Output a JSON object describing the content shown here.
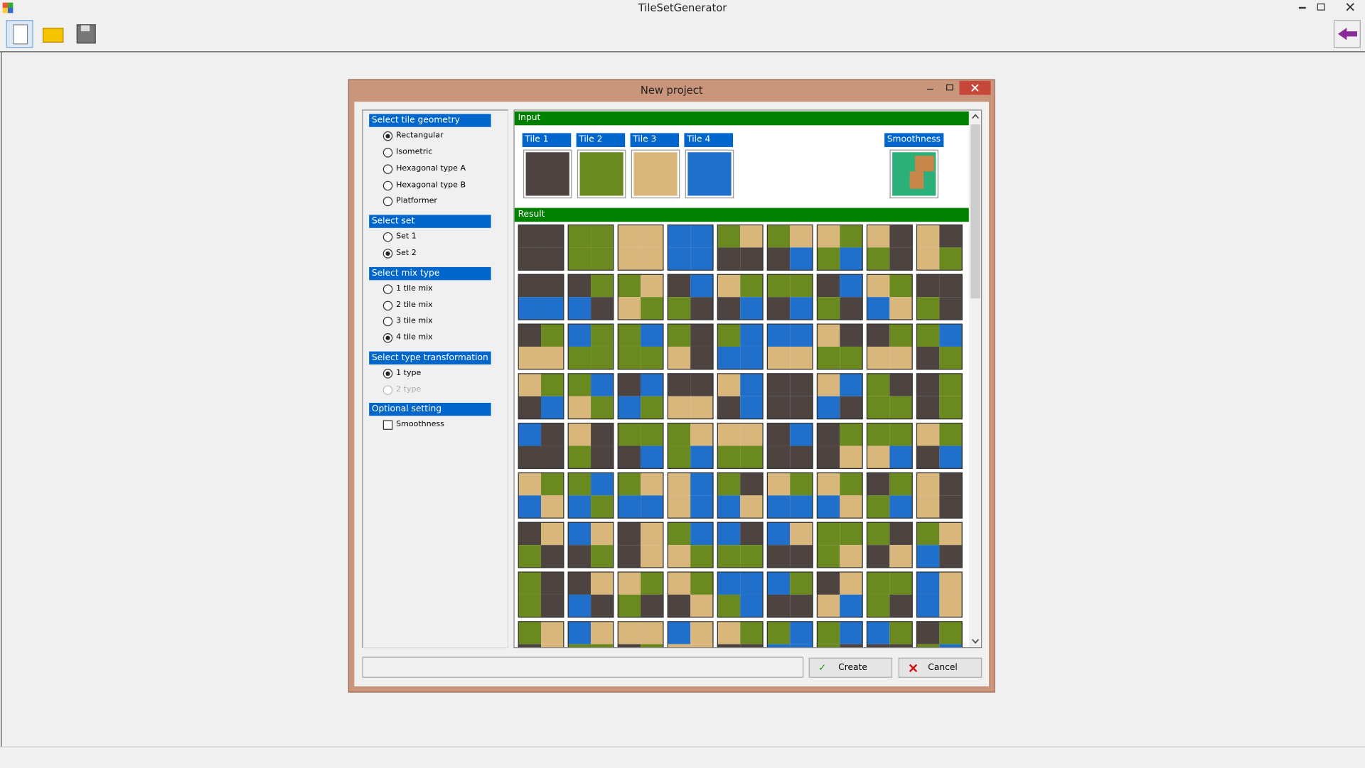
{
  "window": {
    "title": "TileSetGenerator"
  },
  "dialog": {
    "title": "New project",
    "groups": [
      {
        "title": "Select tile geometry",
        "control": "radio",
        "options": [
          {
            "label": "Rectangular",
            "checked": true
          },
          {
            "label": "Isometric",
            "checked": false
          },
          {
            "label": "Hexagonal type A",
            "checked": false
          },
          {
            "label": "Hexagonal type B",
            "checked": false
          },
          {
            "label": "Platformer",
            "checked": false
          }
        ]
      },
      {
        "title": "Select set",
        "control": "radio",
        "options": [
          {
            "label": "Set 1",
            "checked": false
          },
          {
            "label": "Set 2",
            "checked": true
          }
        ]
      },
      {
        "title": "Select mix type",
        "control": "radio",
        "options": [
          {
            "label": "1 tile mix",
            "checked": false
          },
          {
            "label": "2 tile mix",
            "checked": false
          },
          {
            "label": "3 tile mix",
            "checked": false
          },
          {
            "label": "4 tile mix",
            "checked": true
          }
        ]
      },
      {
        "title": "Select type transformation",
        "control": "radio",
        "options": [
          {
            "label": "1 type",
            "checked": true
          },
          {
            "label": "2 type",
            "checked": false,
            "disabled": true
          }
        ]
      },
      {
        "title": "Optional setting",
        "control": "checkbox",
        "options": [
          {
            "label": "Smoothness",
            "checked": false
          }
        ]
      }
    ],
    "input": {
      "title": "Input",
      "tiles": [
        "Tile 1",
        "Tile 2",
        "Tile 3",
        "Tile 4"
      ],
      "smoothness": "Smoothness"
    },
    "result": {
      "title": "Result"
    },
    "buttons": {
      "create": "Create",
      "cancel": "Cancel"
    }
  }
}
